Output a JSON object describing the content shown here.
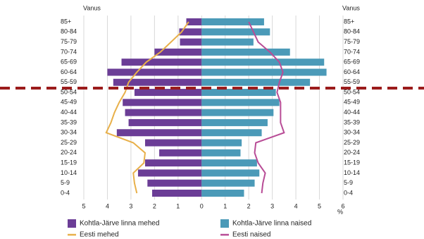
{
  "chart_data": {
    "type": "pyramid",
    "y_label": "Vanus",
    "x_label": "%",
    "categories": [
      "85+",
      "80-84",
      "75-79",
      "70-74",
      "65-69",
      "60-64",
      "55-59",
      "50-54",
      "45-49",
      "40-44",
      "35-39",
      "30-34",
      "25-29",
      "20-24",
      "15-19",
      "10-14",
      "5-9",
      "0-4"
    ],
    "series": [
      {
        "name": "Kohtla-Järve linna mehed",
        "color": "#6b3d96",
        "style": "bar",
        "values": [
          -0.65,
          -0.95,
          -0.92,
          -2.0,
          -3.4,
          -4.0,
          -3.75,
          -2.85,
          -3.35,
          -3.25,
          -3.1,
          -3.6,
          -2.4,
          -1.8,
          -2.4,
          -2.7,
          -2.3,
          -2.1
        ]
      },
      {
        "name": "Kohtla-Järve linna naised",
        "color": "#4b9ab8",
        "style": "bar",
        "values": [
          2.65,
          2.9,
          2.2,
          3.75,
          5.2,
          5.3,
          4.6,
          3.15,
          3.3,
          3.05,
          2.8,
          2.55,
          1.7,
          1.65,
          2.35,
          2.45,
          2.25,
          1.8
        ]
      },
      {
        "name": "Eesti mehed",
        "color": "#e8b04a",
        "style": "line",
        "values": [
          -0.55,
          -0.85,
          -1.3,
          -1.75,
          -2.35,
          -2.75,
          -3.1,
          -3.25,
          -3.5,
          -3.7,
          -3.85,
          -4.05,
          -2.9,
          -2.4,
          -2.45,
          -2.9,
          -2.85,
          -2.75
        ]
      },
      {
        "name": "Eesti naised",
        "color": "#b84c96",
        "style": "line",
        "values": [
          2.0,
          2.2,
          2.4,
          2.9,
          3.3,
          3.45,
          3.3,
          3.2,
          3.35,
          3.35,
          3.35,
          3.5,
          2.3,
          2.25,
          2.4,
          2.7,
          2.6,
          2.55
        ]
      }
    ],
    "xlim": [
      -5,
      6
    ],
    "xticks": [
      {
        "value": -5,
        "label": "5"
      },
      {
        "value": -4,
        "label": "4"
      },
      {
        "value": -3,
        "label": "3"
      },
      {
        "value": -2,
        "label": "2"
      },
      {
        "value": -1,
        "label": "1"
      },
      0,
      1,
      2,
      3,
      4,
      5,
      6
    ],
    "grid": true
  }
}
